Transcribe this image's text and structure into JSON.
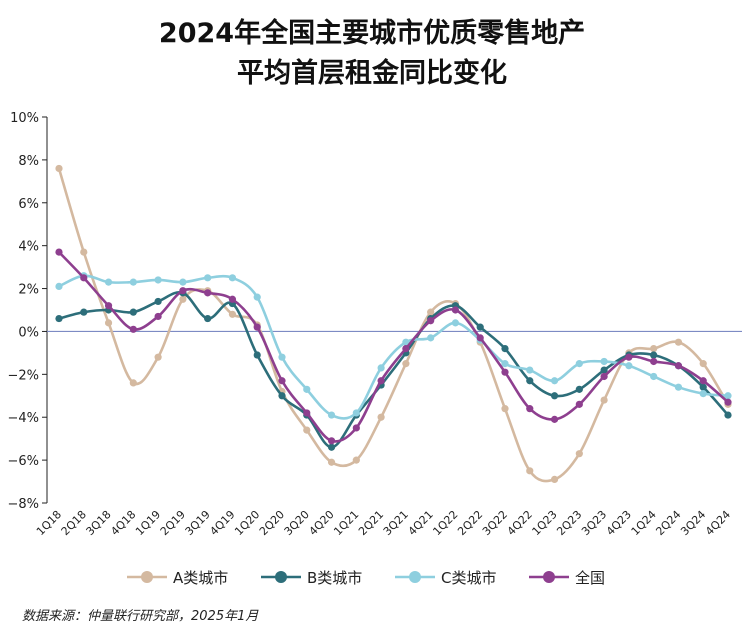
{
  "chart_data": {
    "type": "line",
    "title": [
      "2024年全国主要城市优质零售地产",
      "平均首层租金同比变化"
    ],
    "source": "数据来源：仲量联行研究部，2025年1月",
    "categories": [
      "1Q18",
      "2Q18",
      "3Q18",
      "4Q18",
      "1Q19",
      "2Q19",
      "3Q19",
      "4Q19",
      "1Q20",
      "2Q20",
      "3Q20",
      "4Q20",
      "1Q21",
      "2Q21",
      "3Q21",
      "4Q21",
      "1Q22",
      "2Q22",
      "3Q22",
      "4Q22",
      "1Q23",
      "2Q23",
      "3Q23",
      "4Q23",
      "1Q24",
      "2Q24",
      "3Q24",
      "4Q24"
    ],
    "series": [
      {
        "name": "A类城市",
        "color": "#d4b9a0",
        "values": [
          7.6,
          3.7,
          0.4,
          -2.4,
          -1.2,
          1.5,
          1.9,
          0.8,
          0.3,
          -2.8,
          -4.6,
          -6.1,
          -6.0,
          -4.0,
          -1.5,
          0.9,
          1.3,
          -0.5,
          -3.6,
          -6.5,
          -6.9,
          -5.7,
          -3.2,
          -1.0,
          -0.8,
          -0.5,
          -1.5,
          -3.4
        ]
      },
      {
        "name": "B类城市",
        "color": "#2d6e7a",
        "values": [
          0.6,
          0.9,
          1.0,
          0.9,
          1.4,
          1.8,
          0.6,
          1.3,
          -1.1,
          -3.0,
          -3.9,
          -5.4,
          -3.9,
          -2.5,
          -1.0,
          0.6,
          1.2,
          0.2,
          -0.8,
          -2.3,
          -3.0,
          -2.7,
          -1.8,
          -1.1,
          -1.1,
          -1.6,
          -2.6,
          -3.9
        ]
      },
      {
        "name": "C类城市",
        "color": "#8ecfdf",
        "values": [
          2.1,
          2.6,
          2.3,
          2.3,
          2.4,
          2.3,
          2.5,
          2.5,
          1.6,
          -1.2,
          -2.7,
          -3.9,
          -3.8,
          -1.7,
          -0.5,
          -0.3,
          0.4,
          -0.4,
          -1.5,
          -1.8,
          -2.3,
          -1.5,
          -1.4,
          -1.6,
          -2.1,
          -2.6,
          -2.9,
          -3.0
        ]
      },
      {
        "name": "全国",
        "color": "#8e3f8f",
        "values": [
          3.7,
          2.5,
          1.2,
          0.1,
          0.7,
          1.9,
          1.8,
          1.5,
          0.2,
          -2.3,
          -3.8,
          -5.1,
          -4.5,
          -2.3,
          -0.8,
          0.5,
          1.0,
          -0.3,
          -1.9,
          -3.6,
          -4.1,
          -3.4,
          -2.1,
          -1.2,
          -1.4,
          -1.6,
          -2.3,
          -3.3
        ]
      }
    ],
    "ylim": [
      -8,
      10
    ],
    "yticks": [
      {
        "value": -8,
        "label": "−8%"
      },
      {
        "value": -6,
        "label": "−6%"
      },
      {
        "value": -4,
        "label": "−4%"
      },
      {
        "value": -2,
        "label": "−2%"
      },
      {
        "value": 0,
        "label": "0%"
      },
      {
        "value": 2,
        "label": "2%"
      },
      {
        "value": 4,
        "label": "4%"
      },
      {
        "value": 6,
        "label": "6%"
      },
      {
        "value": 8,
        "label": "8%"
      },
      {
        "value": 10,
        "label": "10%"
      }
    ],
    "zero_line_color": "#7d8bc4",
    "smooth": true,
    "legend": "bottom"
  }
}
